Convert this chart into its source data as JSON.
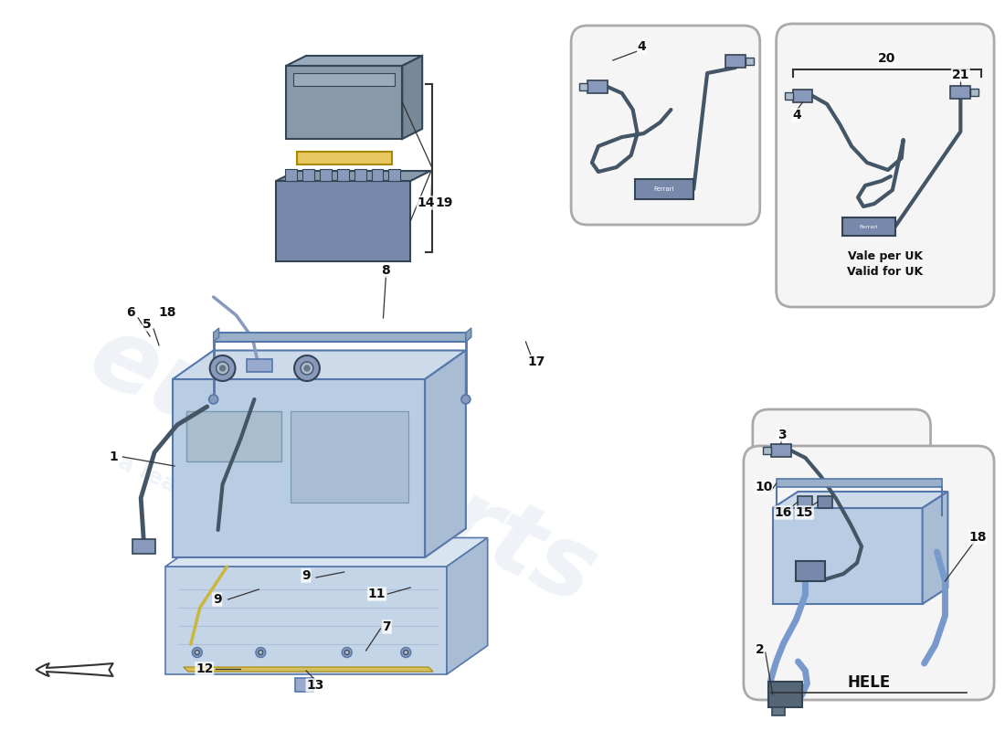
{
  "bg_color": "#ffffff",
  "main_blue": "#b8cce4",
  "dark_blue": "#5577aa",
  "light_blue": "#ccdaea",
  "mid_blue": "#a8bcd4",
  "tray_blue": "#c5d5e8",
  "tray_detail": "#d8e5f0",
  "hose_blue": "#7799cc",
  "connector_blue": "#8899bb",
  "dark_connector": "#7788aa",
  "cable_dark": "#445566",
  "charger_color": "#7788aa",
  "bar_color": "#9ab0c8",
  "fuse_yellow": "#e8c860",
  "fuse_box1": "#8899aa",
  "fuse_box2": "#7788aa",
  "watermark_color": "#c8d4e4",
  "watermark_alpha": 0.28,
  "box_edge": "#aaaaaa",
  "box_fill": "#f5f5f5",
  "uk_note1": "Vale per UK",
  "uk_note2": "Valid for UK",
  "hele_label": "HELE"
}
